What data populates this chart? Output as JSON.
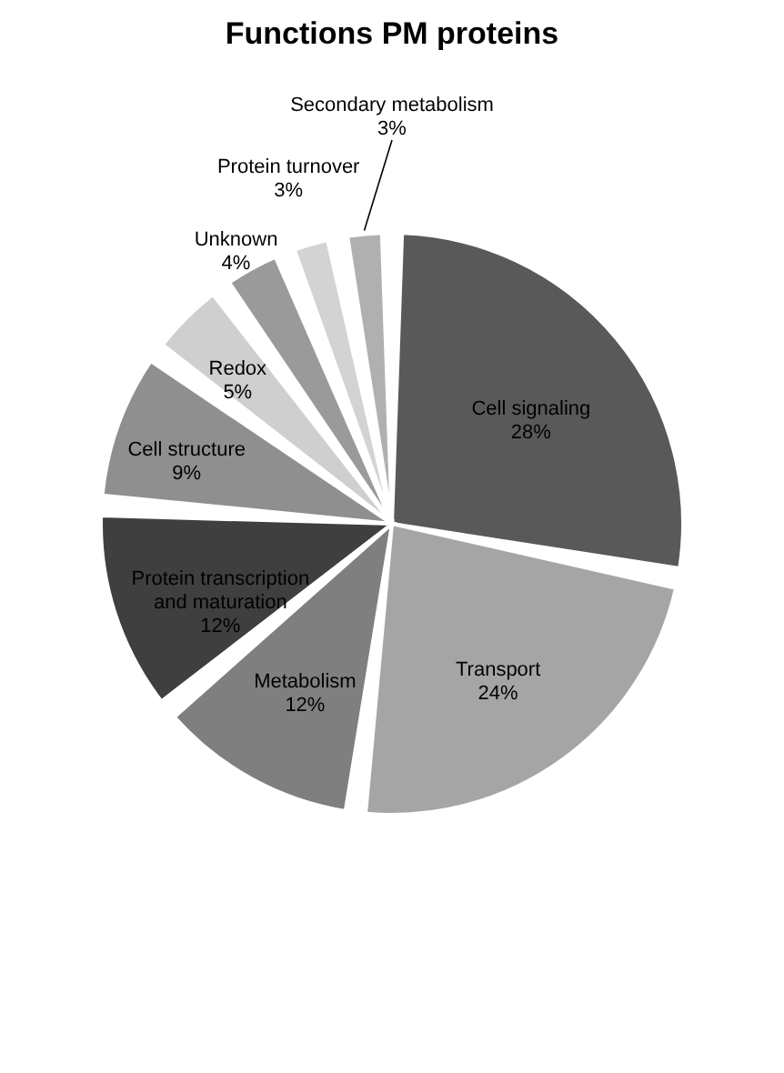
{
  "chart_data": {
    "type": "pie",
    "title": "Functions PM proteins",
    "categories": [
      "Cell signaling",
      "Transport",
      "Metabolism",
      "Protein transcription and maturation",
      "Cell structure",
      "Redox",
      "Unknown",
      "Protein turnover",
      "Secondary metabolism"
    ],
    "values": [
      28,
      24,
      12,
      12,
      9,
      5,
      4,
      3,
      3
    ],
    "colors": [
      "#595959",
      "#a5a5a5",
      "#7f7f7f",
      "#3f3f3f",
      "#8f8f8f",
      "#cfcfcf",
      "#9a9a9a",
      "#d3d3d3",
      "#b0b0b0"
    ],
    "data_labels": true,
    "value_labels": [
      "28%",
      "24%",
      "12%",
      "12%",
      "9%",
      "5%",
      "4%",
      "3%",
      "3%"
    ],
    "legend": false
  }
}
